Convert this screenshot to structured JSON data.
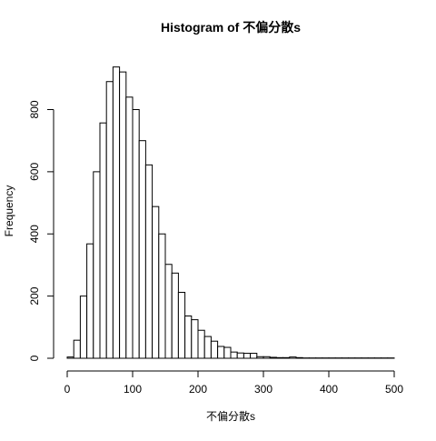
{
  "chart_data": {
    "type": "bar",
    "title": "Histogram of 不偏分散s",
    "xlabel": "不偏分散s",
    "ylabel": "Frequency",
    "xlim": [
      0,
      500
    ],
    "ylim": [
      0,
      950
    ],
    "bin_width": 10,
    "bin_starts": [
      0,
      10,
      20,
      30,
      40,
      50,
      60,
      70,
      80,
      90,
      100,
      110,
      120,
      130,
      140,
      150,
      160,
      170,
      180,
      190,
      200,
      210,
      220,
      230,
      240,
      250,
      260,
      270,
      280,
      290,
      300,
      310,
      320,
      330,
      340,
      350,
      360,
      370,
      380,
      390,
      400,
      410,
      420,
      430,
      440,
      450,
      460,
      470,
      480,
      490
    ],
    "values": [
      4,
      58,
      200,
      368,
      600,
      757,
      890,
      937,
      921,
      840,
      800,
      700,
      622,
      488,
      400,
      302,
      274,
      212,
      136,
      124,
      90,
      70,
      55,
      38,
      35,
      20,
      17,
      16,
      16,
      5,
      5,
      3,
      2,
      2,
      4,
      2,
      1,
      1,
      1,
      1,
      1,
      1,
      1,
      1,
      1,
      1,
      1,
      1,
      1,
      1
    ],
    "x_ticks": [
      "0",
      "100",
      "200",
      "300",
      "400",
      "500"
    ],
    "y_ticks": [
      "0",
      "200",
      "400",
      "600",
      "800"
    ],
    "grid": false,
    "legend": "none"
  }
}
